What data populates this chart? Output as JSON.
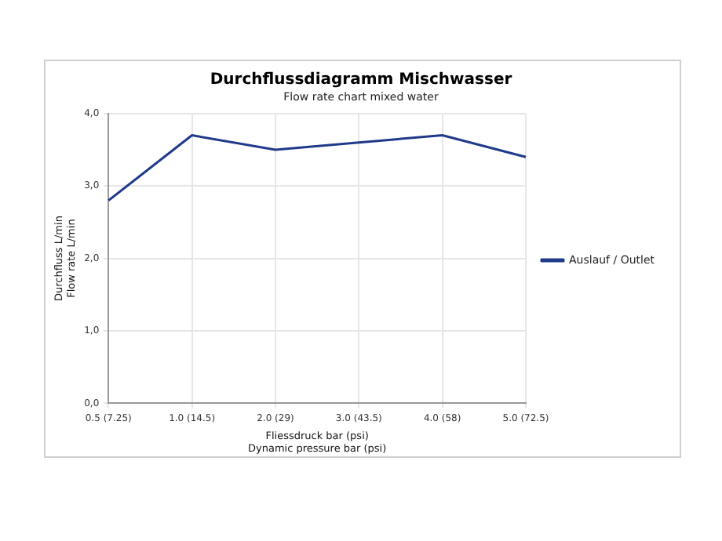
{
  "chart_data": {
    "type": "line",
    "title": "Durchflussdiagramm Mischwasser",
    "subtitle": "Flow rate chart mixed water",
    "xlabel": "Fliessdruck bar (psi)\nDynamic pressure bar (psi)",
    "ylabel": "Durchfluss L/min\nFlow rate L/min",
    "categories": [
      "0.5 (7.25)",
      "1.0 (14.5)",
      "2.0 (29)",
      "3.0 (43.5)",
      "4.0 (58)",
      "5.0 (72.5)"
    ],
    "series": [
      {
        "name": "Auslauf / Outlet",
        "color": "#1f3a8a",
        "values": [
          2.8,
          3.7,
          3.5,
          3.6,
          3.7,
          3.4
        ]
      }
    ],
    "ylim": [
      0,
      4
    ],
    "yticks": [
      {
        "value": 0,
        "label": "0,0"
      },
      {
        "value": 1,
        "label": "1,0"
      },
      {
        "value": 2,
        "label": "2,0"
      },
      {
        "value": 3,
        "label": "3,0"
      },
      {
        "value": 4,
        "label": "4,0"
      }
    ],
    "grid": true,
    "legend": "right",
    "marker": "none",
    "line_style": "solid"
  }
}
